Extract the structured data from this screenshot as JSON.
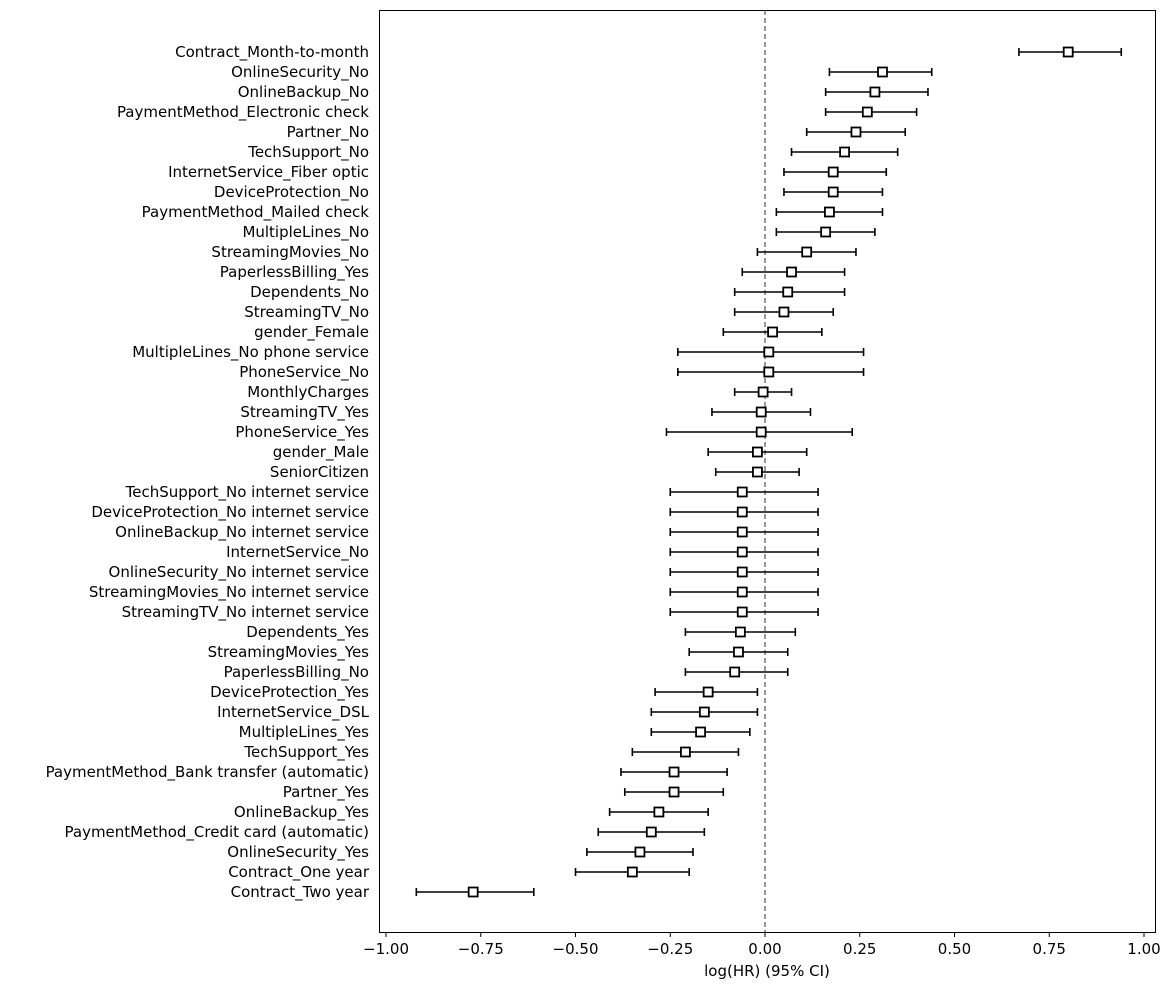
{
  "chart_data": {
    "type": "forest",
    "title": "",
    "xlabel": "log(HR) (95% CI)",
    "ylabel": "",
    "xlim": [
      -1.03,
      1.04
    ],
    "xticks": [
      -1.0,
      -0.75,
      -0.5,
      -0.25,
      0.0,
      0.25,
      0.5,
      0.75,
      1.0
    ],
    "xtick_labels": [
      "−1.00",
      "−0.75",
      "−0.50",
      "−0.25",
      "0.00",
      "0.25",
      "0.50",
      "0.75",
      "1.00"
    ],
    "reference_line": 0,
    "grid": false,
    "marker": "open-square",
    "colors": {
      "mark": "#000000",
      "reference": "#555555"
    },
    "rows": [
      {
        "label": "Contract_Month-to-month",
        "coef": 0.8,
        "lower": 0.67,
        "upper": 0.94
      },
      {
        "label": "OnlineSecurity_No",
        "coef": 0.31,
        "lower": 0.17,
        "upper": 0.44
      },
      {
        "label": "OnlineBackup_No",
        "coef": 0.29,
        "lower": 0.16,
        "upper": 0.43
      },
      {
        "label": "PaymentMethod_Electronic check",
        "coef": 0.27,
        "lower": 0.16,
        "upper": 0.4
      },
      {
        "label": "Partner_No",
        "coef": 0.24,
        "lower": 0.11,
        "upper": 0.37
      },
      {
        "label": "TechSupport_No",
        "coef": 0.21,
        "lower": 0.07,
        "upper": 0.35
      },
      {
        "label": "InternetService_Fiber optic",
        "coef": 0.18,
        "lower": 0.05,
        "upper": 0.32
      },
      {
        "label": "DeviceProtection_No",
        "coef": 0.18,
        "lower": 0.05,
        "upper": 0.31
      },
      {
        "label": "PaymentMethod_Mailed check",
        "coef": 0.17,
        "lower": 0.03,
        "upper": 0.31
      },
      {
        "label": "MultipleLines_No",
        "coef": 0.16,
        "lower": 0.03,
        "upper": 0.29
      },
      {
        "label": "StreamingMovies_No",
        "coef": 0.11,
        "lower": -0.02,
        "upper": 0.24
      },
      {
        "label": "PaperlessBilling_Yes",
        "coef": 0.07,
        "lower": -0.06,
        "upper": 0.21
      },
      {
        "label": "Dependents_No",
        "coef": 0.06,
        "lower": -0.08,
        "upper": 0.21
      },
      {
        "label": "StreamingTV_No",
        "coef": 0.05,
        "lower": -0.08,
        "upper": 0.18
      },
      {
        "label": "gender_Female",
        "coef": 0.02,
        "lower": -0.11,
        "upper": 0.15
      },
      {
        "label": "MultipleLines_No phone service",
        "coef": 0.01,
        "lower": -0.23,
        "upper": 0.26
      },
      {
        "label": "PhoneService_No",
        "coef": 0.01,
        "lower": -0.23,
        "upper": 0.26
      },
      {
        "label": "MonthlyCharges",
        "coef": -0.005,
        "lower": -0.08,
        "upper": 0.07
      },
      {
        "label": "StreamingTV_Yes",
        "coef": -0.01,
        "lower": -0.14,
        "upper": 0.12
      },
      {
        "label": "PhoneService_Yes",
        "coef": -0.01,
        "lower": -0.26,
        "upper": 0.23
      },
      {
        "label": "gender_Male",
        "coef": -0.02,
        "lower": -0.15,
        "upper": 0.11
      },
      {
        "label": "SeniorCitizen",
        "coef": -0.02,
        "lower": -0.13,
        "upper": 0.09
      },
      {
        "label": "TechSupport_No internet service",
        "coef": -0.06,
        "lower": -0.25,
        "upper": 0.14
      },
      {
        "label": "DeviceProtection_No internet service",
        "coef": -0.06,
        "lower": -0.25,
        "upper": 0.14
      },
      {
        "label": "OnlineBackup_No internet service",
        "coef": -0.06,
        "lower": -0.25,
        "upper": 0.14
      },
      {
        "label": "InternetService_No",
        "coef": -0.06,
        "lower": -0.25,
        "upper": 0.14
      },
      {
        "label": "OnlineSecurity_No internet service",
        "coef": -0.06,
        "lower": -0.25,
        "upper": 0.14
      },
      {
        "label": "StreamingMovies_No internet service",
        "coef": -0.06,
        "lower": -0.25,
        "upper": 0.14
      },
      {
        "label": "StreamingTV_No internet service",
        "coef": -0.06,
        "lower": -0.25,
        "upper": 0.14
      },
      {
        "label": "Dependents_Yes",
        "coef": -0.065,
        "lower": -0.21,
        "upper": 0.08
      },
      {
        "label": "StreamingMovies_Yes",
        "coef": -0.07,
        "lower": -0.2,
        "upper": 0.06
      },
      {
        "label": "PaperlessBilling_No",
        "coef": -0.08,
        "lower": -0.21,
        "upper": 0.06
      },
      {
        "label": "DeviceProtection_Yes",
        "coef": -0.15,
        "lower": -0.29,
        "upper": -0.02
      },
      {
        "label": "InternetService_DSL",
        "coef": -0.16,
        "lower": -0.3,
        "upper": -0.02
      },
      {
        "label": "MultipleLines_Yes",
        "coef": -0.17,
        "lower": -0.3,
        "upper": -0.04
      },
      {
        "label": "TechSupport_Yes",
        "coef": -0.21,
        "lower": -0.35,
        "upper": -0.07
      },
      {
        "label": "PaymentMethod_Bank transfer (automatic)",
        "coef": -0.24,
        "lower": -0.38,
        "upper": -0.1
      },
      {
        "label": "Partner_Yes",
        "coef": -0.24,
        "lower": -0.37,
        "upper": -0.11
      },
      {
        "label": "OnlineBackup_Yes",
        "coef": -0.28,
        "lower": -0.41,
        "upper": -0.15
      },
      {
        "label": "PaymentMethod_Credit card (automatic)",
        "coef": -0.3,
        "lower": -0.44,
        "upper": -0.16
      },
      {
        "label": "OnlineSecurity_Yes",
        "coef": -0.33,
        "lower": -0.47,
        "upper": -0.19
      },
      {
        "label": "Contract_One year",
        "coef": -0.35,
        "lower": -0.5,
        "upper": -0.2
      },
      {
        "label": "Contract_Two year",
        "coef": -0.77,
        "lower": -0.92,
        "upper": -0.61
      }
    ]
  }
}
